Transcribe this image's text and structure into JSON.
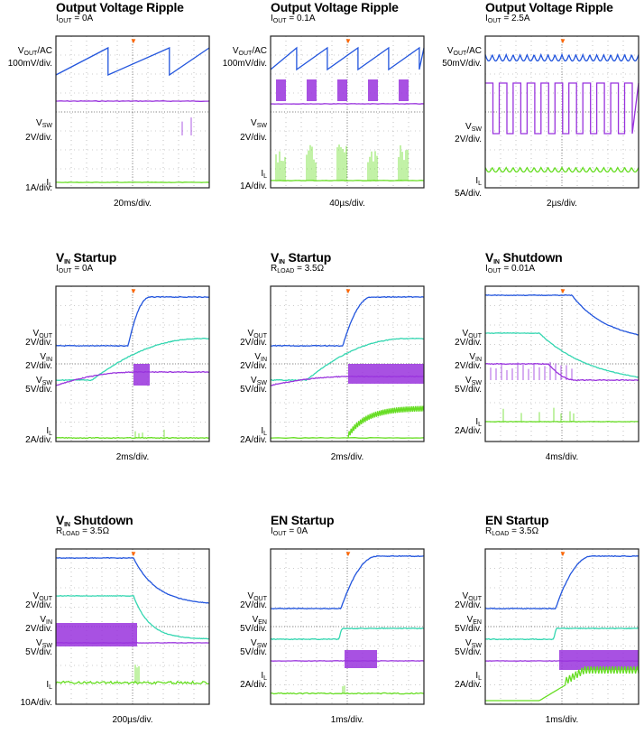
{
  "colors": {
    "vout": "#2255dd",
    "vin": "#33d6b0",
    "sw": "#9933dd",
    "il": "#66dd22",
    "trigger": "#ff6600",
    "grid": "#999999"
  },
  "chart_data": [
    {
      "type": "line",
      "title": "Output Voltage Ripple",
      "condition": "I_OUT = 0A",
      "timebase": "20ms/div.",
      "channels": [
        {
          "name": "V_OUT/AC",
          "scale": "100mV/div."
        },
        {
          "name": "V_SW",
          "scale": "2V/div."
        },
        {
          "name": "I_L",
          "scale": "1A/div."
        }
      ],
      "series": [
        {
          "name": "V_OUT/AC",
          "waveform": "sawtooth",
          "cycles": 2.5
        },
        {
          "name": "V_SW",
          "waveform": "flat with sparse spikes"
        },
        {
          "name": "I_L",
          "waveform": "flat near zero"
        }
      ]
    },
    {
      "type": "line",
      "title": "Output Voltage Ripple",
      "condition": "I_OUT = 0.1A",
      "timebase": "40µs/div.",
      "channels": [
        {
          "name": "V_OUT/AC",
          "scale": "100mV/div."
        },
        {
          "name": "V_SW",
          "scale": "2V/div."
        },
        {
          "name": "I_L",
          "scale": "1A/div."
        }
      ],
      "series": [
        {
          "name": "V_OUT/AC",
          "waveform": "sawtooth",
          "cycles": 5
        },
        {
          "name": "V_SW",
          "waveform": "switching bursts",
          "bursts": 5
        },
        {
          "name": "I_L",
          "waveform": "current bursts",
          "bursts": 5
        }
      ]
    },
    {
      "type": "line",
      "title": "Output Voltage Ripple",
      "condition": "I_OUT = 2.5A",
      "timebase": "2µs/div.",
      "channels": [
        {
          "name": "V_OUT/AC",
          "scale": "50mV/div."
        },
        {
          "name": "V_SW",
          "scale": "2V/div."
        },
        {
          "name": "I_L",
          "scale": "5A/div."
        }
      ],
      "series": [
        {
          "name": "V_OUT/AC",
          "waveform": "ripple",
          "cycles": 11
        },
        {
          "name": "V_SW",
          "waveform": "square",
          "cycles": 11
        },
        {
          "name": "I_L",
          "waveform": "triangle ripple",
          "cycles": 11
        }
      ]
    },
    {
      "type": "line",
      "title": "V_IN Startup",
      "condition": "I_OUT = 0A",
      "timebase": "2ms/div.",
      "channels": [
        {
          "name": "V_OUT",
          "scale": "2V/div."
        },
        {
          "name": "V_IN",
          "scale": "2V/div."
        },
        {
          "name": "V_SW",
          "scale": "5V/div."
        },
        {
          "name": "I_L",
          "scale": "2A/div."
        }
      ],
      "series": [
        {
          "name": "V_OUT",
          "waveform": "rise after trigger"
        },
        {
          "name": "V_IN",
          "waveform": "slow ramp up"
        },
        {
          "name": "V_SW",
          "waveform": "ramp then short switching burst"
        },
        {
          "name": "I_L",
          "waveform": "small pulses near zero"
        }
      ]
    },
    {
      "type": "line",
      "title": "V_IN Startup",
      "condition": "R_LOAD = 3.5Ω",
      "timebase": "2ms/div.",
      "channels": [
        {
          "name": "V_OUT",
          "scale": "2V/div."
        },
        {
          "name": "V_IN",
          "scale": "2V/div."
        },
        {
          "name": "V_SW",
          "scale": "5V/div."
        },
        {
          "name": "I_L",
          "scale": "2A/div."
        }
      ],
      "series": [
        {
          "name": "V_OUT",
          "waveform": "rise after trigger"
        },
        {
          "name": "V_IN",
          "waveform": "slow ramp up"
        },
        {
          "name": "V_SW",
          "waveform": "continuous switching after start"
        },
        {
          "name": "I_L",
          "waveform": "rises to ~2A with ripple"
        }
      ]
    },
    {
      "type": "line",
      "title": "V_IN Shutdown",
      "condition": "I_OUT = 0.01A",
      "timebase": "4ms/div.",
      "channels": [
        {
          "name": "V_OUT",
          "scale": "2V/div."
        },
        {
          "name": "V_IN",
          "scale": "2V/div."
        },
        {
          "name": "V_SW",
          "scale": "5V/div."
        },
        {
          "name": "I_L",
          "scale": "2A/div."
        }
      ],
      "series": [
        {
          "name": "V_OUT",
          "waveform": "fall after trigger"
        },
        {
          "name": "V_IN",
          "waveform": "slow ramp down"
        },
        {
          "name": "V_SW",
          "waveform": "sparse switching then stops"
        },
        {
          "name": "I_L",
          "waveform": "sparse spikes then zero"
        }
      ]
    },
    {
      "type": "line",
      "title": "V_IN Shutdown",
      "condition": "R_LOAD = 3.5Ω",
      "timebase": "200µs/div.",
      "channels": [
        {
          "name": "V_OUT",
          "scale": "2V/div."
        },
        {
          "name": "V_IN",
          "scale": "2V/div."
        },
        {
          "name": "V_SW",
          "scale": "5V/div."
        },
        {
          "name": "I_L",
          "scale": "10A/div."
        }
      ],
      "series": [
        {
          "name": "V_OUT",
          "waveform": "exponential decay after trigger"
        },
        {
          "name": "V_IN",
          "waveform": "drop after trigger"
        },
        {
          "name": "V_SW",
          "waveform": "continuous switching then stops"
        },
        {
          "name": "I_L",
          "waveform": "ripple with spike at stop"
        }
      ]
    },
    {
      "type": "line",
      "title": "EN Startup",
      "condition": "I_OUT = 0A",
      "timebase": "1ms/div.",
      "channels": [
        {
          "name": "V_OUT",
          "scale": "2V/div."
        },
        {
          "name": "V_EN",
          "scale": "5V/div."
        },
        {
          "name": "V_SW",
          "scale": "5V/div."
        },
        {
          "name": "I_L",
          "scale": "2A/div."
        }
      ],
      "series": [
        {
          "name": "V_OUT",
          "waveform": "rise after trigger"
        },
        {
          "name": "V_EN",
          "waveform": "step up at trigger"
        },
        {
          "name": "V_SW",
          "waveform": "switching burst during startup"
        },
        {
          "name": "I_L",
          "waveform": "small ripple near zero"
        }
      ]
    },
    {
      "type": "line",
      "title": "EN Startup",
      "condition": "R_LOAD = 3.5Ω",
      "timebase": "1ms/div.",
      "channels": [
        {
          "name": "V_OUT",
          "scale": "2V/div."
        },
        {
          "name": "V_EN",
          "scale": "5V/div."
        },
        {
          "name": "V_SW",
          "scale": "5V/div."
        },
        {
          "name": "I_L",
          "scale": "2A/div."
        }
      ],
      "series": [
        {
          "name": "V_OUT",
          "waveform": "rise after trigger"
        },
        {
          "name": "V_EN",
          "waveform": "step up at trigger"
        },
        {
          "name": "V_SW",
          "waveform": "continuous switching after start"
        },
        {
          "name": "I_L",
          "waveform": "ramps up with ripple"
        }
      ]
    }
  ]
}
